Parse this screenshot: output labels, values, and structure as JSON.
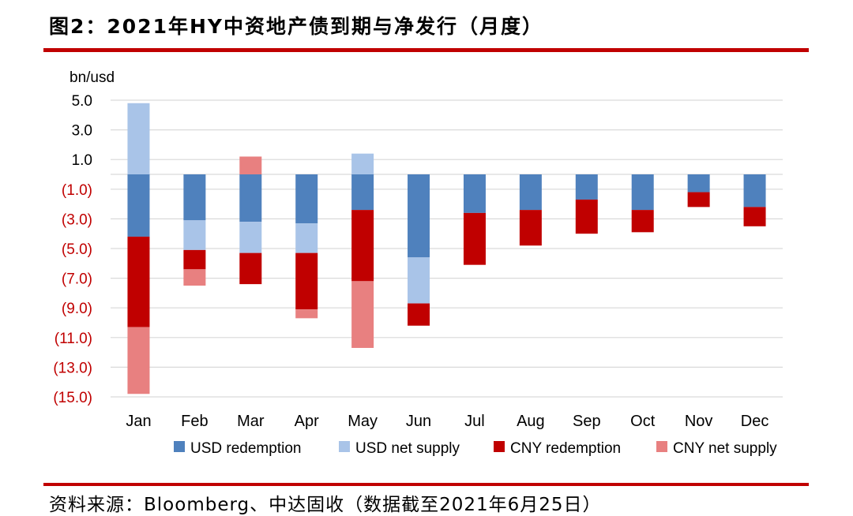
{
  "header": {
    "title": "图2：2021年HY中资地产债到期与净发行（月度）"
  },
  "footer": {
    "source": "资料来源：Bloomberg、中达固收（数据截至2021年6月25日）"
  },
  "colors": {
    "usd_redemption": "#4f81bd",
    "usd_net_supply": "#a9c4e8",
    "cny_redemption": "#c00000",
    "cny_net_supply": "#e88080",
    "negative_tick": "#c00000",
    "rule": "#c00000"
  },
  "chart_data": {
    "type": "bar",
    "stacked": true,
    "ylabel": "bn/usd",
    "ylim": [
      -15,
      5
    ],
    "yticks": [
      "5.0",
      "3.0",
      "1.0",
      "(1.0)",
      "(3.0)",
      "(5.0)",
      "(7.0)",
      "(9.0)",
      "(11.0)",
      "(13.0)",
      "(15.0)"
    ],
    "categories": [
      "Jan",
      "Feb",
      "Mar",
      "Apr",
      "May",
      "Jun",
      "Jul",
      "Aug",
      "Sep",
      "Oct",
      "Nov",
      "Dec"
    ],
    "series": [
      {
        "name": "USD redemption",
        "key": "usd_redemption",
        "values": [
          -4.2,
          -3.1,
          -3.2,
          -3.3,
          -2.4,
          -5.6,
          -2.6,
          -2.4,
          -1.7,
          -2.4,
          -1.2,
          -2.2
        ]
      },
      {
        "name": "USD net supply",
        "key": "usd_net_supply",
        "values": [
          4.8,
          -2.0,
          -2.1,
          -2.0,
          1.4,
          -3.1,
          0,
          0,
          0,
          0,
          0,
          0
        ]
      },
      {
        "name": "CNY redemption",
        "key": "cny_redemption",
        "values": [
          -6.1,
          -1.3,
          -2.1,
          -3.8,
          -4.8,
          -1.5,
          -3.5,
          -2.4,
          -2.3,
          -1.5,
          -1.0,
          -1.3
        ]
      },
      {
        "name": "CNY net supply",
        "key": "cny_net_supply",
        "values": [
          -4.5,
          -1.1,
          1.2,
          -0.6,
          -4.5,
          0,
          0,
          0,
          0,
          0,
          0,
          0
        ]
      }
    ],
    "legend_position": "bottom",
    "grid": true
  }
}
